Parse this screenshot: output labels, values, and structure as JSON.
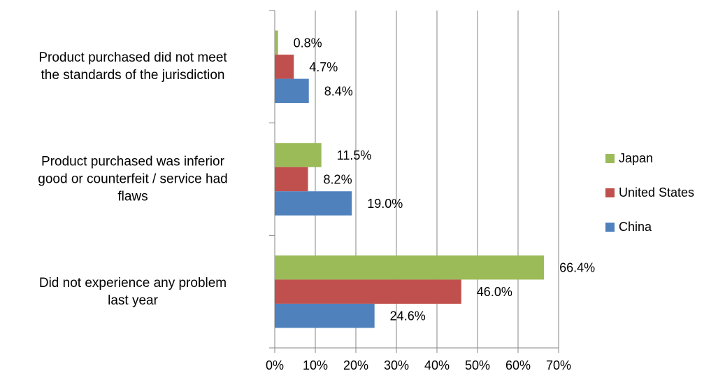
{
  "chart_data": {
    "type": "hbar",
    "categories": [
      "Product purchased did not meet\nthe standards of the jurisdiction",
      "Product purchased was inferior\ngood or counterfeit / service had\nflaws",
      "Did not experience any problem\nlast year"
    ],
    "series": [
      {
        "name": "Japan",
        "color": "#9bbb59",
        "values": [
          0.8,
          11.5,
          66.4
        ],
        "value_labels": [
          "0.8%",
          "11.5%",
          "66.4%"
        ]
      },
      {
        "name": "United States",
        "color": "#c0504d",
        "values": [
          4.7,
          8.2,
          46.0
        ],
        "value_labels": [
          "4.7%",
          "8.2%",
          "46.0%"
        ]
      },
      {
        "name": "China",
        "color": "#4f81bd",
        "values": [
          8.4,
          19.0,
          24.6
        ],
        "value_labels": [
          "8.4%",
          "19.0%",
          "24.6%"
        ]
      }
    ],
    "xlim": [
      0,
      70
    ],
    "xticks": [
      {
        "value": 0,
        "label": "0%"
      },
      {
        "value": 10,
        "label": "10%"
      },
      {
        "value": 20,
        "label": "20%"
      },
      {
        "value": 30,
        "label": "30%"
      },
      {
        "value": 40,
        "label": "40%"
      },
      {
        "value": 50,
        "label": "50%"
      },
      {
        "value": 60,
        "label": "60%"
      },
      {
        "value": 70,
        "label": "70%"
      }
    ],
    "grid": true,
    "legend": "right"
  }
}
